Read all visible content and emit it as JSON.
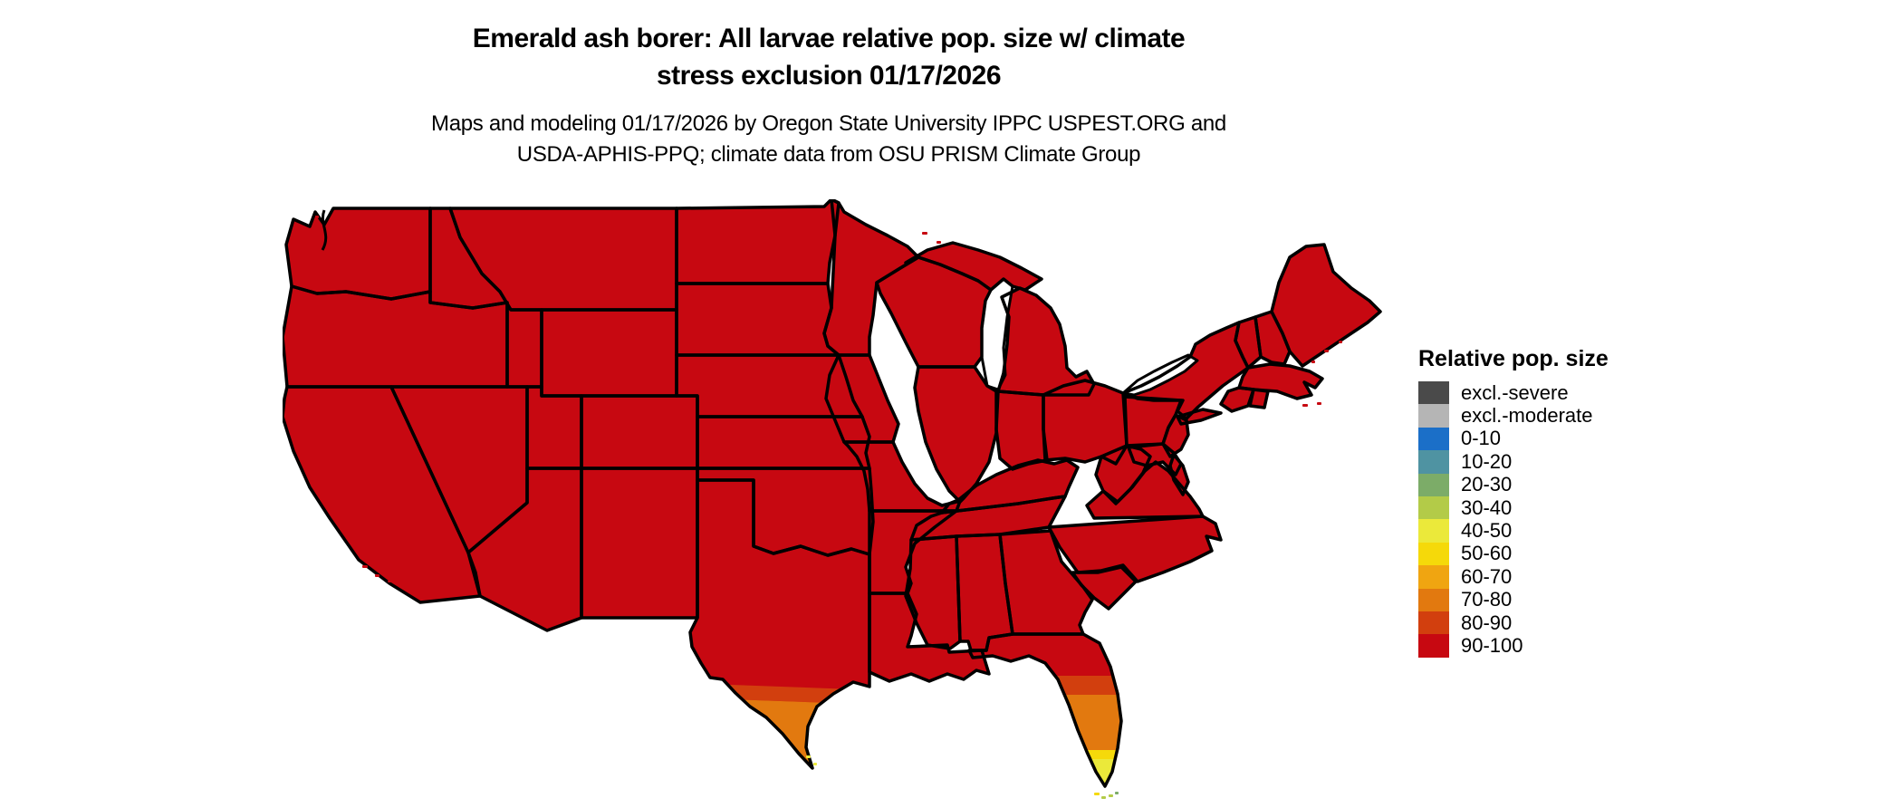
{
  "header": {
    "title_line1": "Emerald ash borer: All larvae relative pop. size w/ climate",
    "title_line2": "stress exclusion 01/17/2026",
    "subtitle_line1": "Maps and modeling 01/17/2026 by Oregon State University IPPC USPEST.ORG and",
    "subtitle_line2": "USDA-APHIS-PPQ; climate data from OSU PRISM Climate Group"
  },
  "legend": {
    "title": "Relative pop. size",
    "items": [
      {
        "label": "excl.-severe",
        "color": "#4a4a4a"
      },
      {
        "label": "excl.-moderate",
        "color": "#b5b5b5"
      },
      {
        "label": "0-10",
        "color": "#1b6fc8"
      },
      {
        "label": "10-20",
        "color": "#4f93a2"
      },
      {
        "label": "20-30",
        "color": "#7cac68"
      },
      {
        "label": "30-40",
        "color": "#b3cb48"
      },
      {
        "label": "40-50",
        "color": "#ebe93a"
      },
      {
        "label": "50-60",
        "color": "#f5d90a"
      },
      {
        "label": "60-70",
        "color": "#f0a511"
      },
      {
        "label": "70-80",
        "color": "#e2790f"
      },
      {
        "label": "80-90",
        "color": "#d23f0e"
      },
      {
        "label": "90-100",
        "color": "#c70811"
      }
    ]
  },
  "map": {
    "name": "Conterminous United States relative population size map",
    "background_color": "#ffffff",
    "state_border_color": "#000000",
    "dominant_class": "90-100",
    "regions": [
      {
        "area": "Most of the conterminous United States",
        "legend_class": "90-100"
      },
      {
        "area": "Southern Texas (lower Rio Grande Valley)",
        "legend_class": "70-80"
      },
      {
        "area": "Central Florida transition band",
        "legend_class": "80-90"
      },
      {
        "area": "South-central Florida peninsula",
        "legend_class": "70-80"
      },
      {
        "area": "Southern tip of Florida",
        "legend_class": "40-60"
      },
      {
        "area": "Florida Keys",
        "legend_class": "20-40"
      }
    ]
  }
}
